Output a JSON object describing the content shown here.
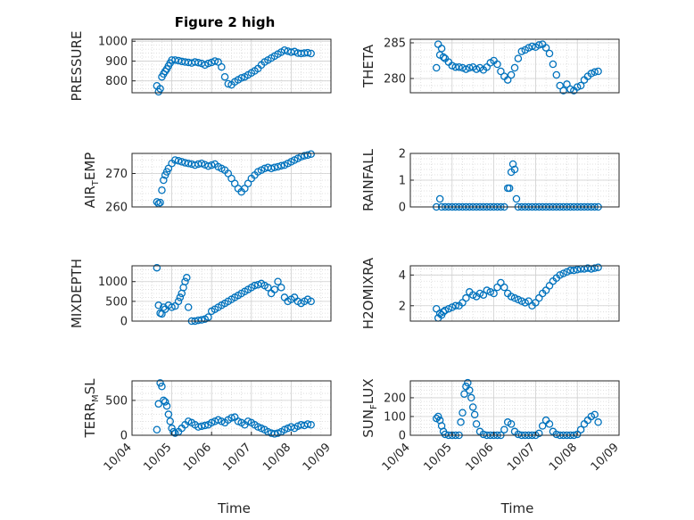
{
  "figure": {
    "title": "Figure 2 high",
    "colors": {
      "marker": "#0072BD",
      "axes": "#262626",
      "grid": "#d9d9d9",
      "background": "#ffffff"
    }
  },
  "chart_data": [
    {
      "type": "scatter",
      "ylabel": "PRESSURE",
      "ylim": [
        740,
        1010
      ],
      "yticks": [
        800,
        900,
        1000
      ],
      "xlim": [
        "10/04",
        "10/09"
      ],
      "xticks": [],
      "grid": true,
      "x": [
        "10/04 15:00",
        "10/04 16:00",
        "10/04 17:00",
        "10/04 18:00",
        "10/04 19:00",
        "10/04 20:00",
        "10/04 21:00",
        "10/04 22:00",
        "10/04 23:00",
        "10/05 00:00",
        "10/05 02:00",
        "10/05 04:00",
        "10/05 06:00",
        "10/05 08:00",
        "10/05 10:00",
        "10/05 12:00",
        "10/05 14:00",
        "10/05 16:00",
        "10/05 18:00",
        "10/05 20:00",
        "10/05 22:00",
        "10/06 00:00",
        "10/06 02:00",
        "10/06 04:00",
        "10/06 06:00",
        "10/06 08:00",
        "10/06 10:00",
        "10/06 12:00",
        "10/06 14:00",
        "10/06 16:00",
        "10/06 18:00",
        "10/06 20:00",
        "10/06 22:00",
        "10/07 00:00",
        "10/07 02:00",
        "10/07 04:00",
        "10/07 06:00",
        "10/07 08:00",
        "10/07 10:00",
        "10/07 12:00",
        "10/07 14:00",
        "10/07 16:00",
        "10/07 18:00",
        "10/07 20:00",
        "10/07 22:00",
        "10/08 00:00",
        "10/08 02:00",
        "10/08 04:00",
        "10/08 06:00",
        "10/08 08:00",
        "10/08 10:00",
        "10/08 12:00"
      ],
      "y": [
        775,
        745,
        760,
        820,
        835,
        848,
        860,
        875,
        890,
        905,
        905,
        902,
        898,
        895,
        893,
        890,
        895,
        892,
        888,
        880,
        888,
        893,
        900,
        895,
        870,
        820,
        785,
        780,
        795,
        805,
        815,
        820,
        830,
        840,
        850,
        862,
        880,
        895,
        905,
        915,
        925,
        935,
        945,
        955,
        950,
        945,
        948,
        940,
        938,
        940,
        942,
        938
      ]
    },
    {
      "type": "scatter",
      "ylabel": "THETA",
      "ylim": [
        278,
        285.5
      ],
      "yticks": [
        280,
        285
      ],
      "xlim": [
        "10/04",
        "10/09"
      ],
      "xticks": [],
      "grid": true,
      "x": [
        "10/04 15:00",
        "10/04 16:00",
        "10/04 17:00",
        "10/04 18:00",
        "10/04 19:00",
        "10/04 20:00",
        "10/04 22:00",
        "10/05 00:00",
        "10/05 02:00",
        "10/05 04:00",
        "10/05 06:00",
        "10/05 08:00",
        "10/05 10:00",
        "10/05 12:00",
        "10/05 14:00",
        "10/05 16:00",
        "10/05 18:00",
        "10/05 20:00",
        "10/05 22:00",
        "10/06 00:00",
        "10/06 02:00",
        "10/06 04:00",
        "10/06 06:00",
        "10/06 08:00",
        "10/06 10:00",
        "10/06 12:00",
        "10/06 14:00",
        "10/06 16:00",
        "10/06 18:00",
        "10/06 20:00",
        "10/06 22:00",
        "10/07 00:00",
        "10/07 02:00",
        "10/07 04:00",
        "10/07 06:00",
        "10/07 08:00",
        "10/07 10:00",
        "10/07 12:00",
        "10/07 14:00",
        "10/07 16:00",
        "10/07 18:00",
        "10/07 20:00",
        "10/07 22:00",
        "10/08 00:00",
        "10/08 02:00",
        "10/08 04:00",
        "10/08 06:00",
        "10/08 08:00",
        "10/08 10:00",
        "10/08 12:00"
      ],
      "y": [
        281.5,
        284.8,
        283.3,
        284.2,
        283.0,
        282.8,
        282.3,
        281.8,
        281.6,
        281.6,
        281.5,
        281.3,
        281.5,
        281.6,
        281.3,
        281.5,
        281.2,
        281.6,
        282.2,
        282.5,
        282.0,
        281.0,
        280.3,
        279.8,
        280.5,
        281.5,
        282.8,
        283.8,
        284.0,
        284.3,
        284.5,
        284.4,
        284.7,
        284.8,
        284.3,
        283.5,
        282.0,
        280.5,
        279.0,
        278.3,
        279.2,
        278.5,
        278.3,
        278.8,
        279.0,
        279.8,
        280.3,
        280.7,
        280.9,
        281.0
      ]
    },
    {
      "type": "scatter",
      "ylabel": "AIR_TEMP",
      "ylim": [
        260,
        276
      ],
      "yticks": [
        260,
        270
      ],
      "xlim": [
        "10/04",
        "10/09"
      ],
      "xticks": [],
      "grid": true,
      "x": [
        "10/04 15:00",
        "10/04 16:00",
        "10/04 17:00",
        "10/04 18:00",
        "10/04 19:00",
        "10/04 20:00",
        "10/04 21:00",
        "10/04 22:00",
        "10/05 00:00",
        "10/05 02:00",
        "10/05 04:00",
        "10/05 06:00",
        "10/05 08:00",
        "10/05 10:00",
        "10/05 12:00",
        "10/05 14:00",
        "10/05 16:00",
        "10/05 18:00",
        "10/05 20:00",
        "10/05 22:00",
        "10/06 00:00",
        "10/06 02:00",
        "10/06 04:00",
        "10/06 06:00",
        "10/06 08:00",
        "10/06 10:00",
        "10/06 12:00",
        "10/06 14:00",
        "10/06 16:00",
        "10/06 18:00",
        "10/06 20:00",
        "10/06 22:00",
        "10/07 00:00",
        "10/07 02:00",
        "10/07 04:00",
        "10/07 06:00",
        "10/07 08:00",
        "10/07 10:00",
        "10/07 12:00",
        "10/07 14:00",
        "10/07 16:00",
        "10/07 18:00",
        "10/07 20:00",
        "10/07 22:00",
        "10/08 00:00",
        "10/08 02:00",
        "10/08 04:00",
        "10/08 06:00",
        "10/08 08:00",
        "10/08 10:00",
        "10/08 12:00"
      ],
      "y": [
        261.5,
        261.0,
        261.3,
        265.0,
        268.0,
        269.5,
        270.5,
        271.5,
        273.0,
        274.0,
        273.8,
        273.5,
        273.2,
        273.0,
        272.8,
        272.5,
        272.8,
        273.0,
        272.6,
        272.2,
        272.5,
        272.8,
        272.0,
        271.5,
        271.0,
        270.0,
        268.5,
        267.0,
        265.5,
        264.5,
        265.5,
        267.0,
        268.5,
        269.5,
        270.5,
        271.0,
        271.5,
        271.8,
        271.5,
        271.8,
        272.0,
        272.3,
        272.5,
        273.0,
        273.5,
        274.0,
        274.5,
        275.0,
        275.3,
        275.5,
        275.8
      ]
    },
    {
      "type": "scatter",
      "ylabel": "RAINFALL",
      "ylim": [
        0,
        2
      ],
      "yticks": [
        0,
        1,
        2
      ],
      "xlim": [
        "10/04",
        "10/09"
      ],
      "xticks": [],
      "grid": true,
      "x": [
        "10/04 15:00",
        "10/04 17:00",
        "10/04 18:00",
        "10/04 20:00",
        "10/04 22:00",
        "10/05 00:00",
        "10/05 02:00",
        "10/05 04:00",
        "10/05 06:00",
        "10/05 08:00",
        "10/05 10:00",
        "10/05 12:00",
        "10/05 14:00",
        "10/05 16:00",
        "10/05 18:00",
        "10/05 20:00",
        "10/05 22:00",
        "10/06 00:00",
        "10/06 02:00",
        "10/06 04:00",
        "10/06 06:00",
        "10/06 08:00",
        "10/06 09:00",
        "10/06 10:00",
        "10/06 11:00",
        "10/06 12:00",
        "10/06 13:00",
        "10/06 14:00",
        "10/06 16:00",
        "10/06 18:00",
        "10/06 20:00",
        "10/06 22:00",
        "10/07 00:00",
        "10/07 02:00",
        "10/07 04:00",
        "10/07 06:00",
        "10/07 08:00",
        "10/07 10:00",
        "10/07 12:00",
        "10/07 14:00",
        "10/07 16:00",
        "10/07 18:00",
        "10/07 20:00",
        "10/07 22:00",
        "10/08 00:00",
        "10/08 02:00",
        "10/08 04:00",
        "10/08 06:00",
        "10/08 08:00",
        "10/08 10:00",
        "10/08 12:00"
      ],
      "y": [
        0,
        0.3,
        0,
        0,
        0,
        0,
        0,
        0,
        0,
        0,
        0,
        0,
        0,
        0,
        0,
        0,
        0,
        0,
        0,
        0,
        0,
        0.7,
        0.7,
        1.3,
        1.6,
        1.4,
        0.3,
        0,
        0,
        0,
        0,
        0,
        0,
        0,
        0,
        0,
        0,
        0,
        0,
        0,
        0,
        0,
        0,
        0,
        0,
        0,
        0,
        0,
        0,
        0,
        0
      ]
    },
    {
      "type": "scatter",
      "ylabel": "MIXDEPTH",
      "ylim": [
        0,
        1400
      ],
      "yticks": [
        0,
        500,
        1000
      ],
      "xlim": [
        "10/04",
        "10/09"
      ],
      "xticks": [],
      "grid": true,
      "x": [
        "10/04 15:00",
        "10/04 16:00",
        "10/04 17:00",
        "10/04 18:00",
        "10/04 19:00",
        "10/04 20:00",
        "10/04 22:00",
        "10/05 00:00",
        "10/05 02:00",
        "10/05 04:00",
        "10/05 05:00",
        "10/05 06:00",
        "10/05 07:00",
        "10/05 08:00",
        "10/05 09:00",
        "10/05 10:00",
        "10/05 12:00",
        "10/05 14:00",
        "10/05 16:00",
        "10/05 18:00",
        "10/05 20:00",
        "10/05 22:00",
        "10/06 00:00",
        "10/06 02:00",
        "10/06 04:00",
        "10/06 06:00",
        "10/06 08:00",
        "10/06 10:00",
        "10/06 12:00",
        "10/06 14:00",
        "10/06 16:00",
        "10/06 18:00",
        "10/06 20:00",
        "10/06 22:00",
        "10/07 00:00",
        "10/07 02:00",
        "10/07 04:00",
        "10/07 06:00",
        "10/07 08:00",
        "10/07 10:00",
        "10/07 12:00",
        "10/07 14:00",
        "10/07 16:00",
        "10/07 18:00",
        "10/07 20:00",
        "10/07 22:00",
        "10/08 00:00",
        "10/08 02:00",
        "10/08 04:00",
        "10/08 06:00",
        "10/08 08:00",
        "10/08 10:00",
        "10/08 12:00"
      ],
      "y": [
        1350,
        400,
        200,
        180,
        350,
        300,
        400,
        350,
        380,
        500,
        600,
        700,
        850,
        1000,
        1100,
        350,
        0,
        0,
        20,
        30,
        50,
        100,
        250,
        300,
        350,
        400,
        450,
        500,
        550,
        600,
        650,
        700,
        750,
        800,
        850,
        900,
        920,
        950,
        900,
        850,
        700,
        800,
        1000,
        850,
        600,
        500,
        550,
        600,
        500,
        450,
        500,
        550,
        500
      ]
    },
    {
      "type": "scatter",
      "ylabel": "H2OMIXRA",
      "ylim": [
        1,
        4.6
      ],
      "yticks": [
        2,
        4
      ],
      "xlim": [
        "10/04",
        "10/09"
      ],
      "xticks": [],
      "grid": true,
      "x": [
        "10/04 15:00",
        "10/04 16:00",
        "10/04 17:00",
        "10/04 18:00",
        "10/04 19:00",
        "10/04 20:00",
        "10/04 22:00",
        "10/05 00:00",
        "10/05 02:00",
        "10/05 04:00",
        "10/05 06:00",
        "10/05 08:00",
        "10/05 10:00",
        "10/05 12:00",
        "10/05 14:00",
        "10/05 16:00",
        "10/05 18:00",
        "10/05 20:00",
        "10/05 22:00",
        "10/06 00:00",
        "10/06 02:00",
        "10/06 04:00",
        "10/06 06:00",
        "10/06 08:00",
        "10/06 10:00",
        "10/06 12:00",
        "10/06 14:00",
        "10/06 16:00",
        "10/06 18:00",
        "10/06 20:00",
        "10/06 22:00",
        "10/07 00:00",
        "10/07 02:00",
        "10/07 04:00",
        "10/07 06:00",
        "10/07 08:00",
        "10/07 10:00",
        "10/07 12:00",
        "10/07 14:00",
        "10/07 16:00",
        "10/07 18:00",
        "10/07 20:00",
        "10/07 22:00",
        "10/08 00:00",
        "10/08 02:00",
        "10/08 04:00",
        "10/08 06:00",
        "10/08 08:00",
        "10/08 10:00",
        "10/08 12:00"
      ],
      "y": [
        1.8,
        1.2,
        1.5,
        1.4,
        1.6,
        1.7,
        1.8,
        1.9,
        2.0,
        2.0,
        2.2,
        2.5,
        2.9,
        2.7,
        2.6,
        2.8,
        2.7,
        3.0,
        2.9,
        2.8,
        3.2,
        3.5,
        3.2,
        2.8,
        2.6,
        2.5,
        2.4,
        2.3,
        2.2,
        2.3,
        2.0,
        2.2,
        2.5,
        2.8,
        3.0,
        3.3,
        3.6,
        3.8,
        4.0,
        4.1,
        4.2,
        4.3,
        4.3,
        4.35,
        4.4,
        4.4,
        4.45,
        4.4,
        4.45,
        4.5
      ]
    },
    {
      "type": "scatter",
      "ylabel": "TERR_MSL",
      "ylim": [
        0,
        780
      ],
      "yticks": [
        0,
        500
      ],
      "xlim": [
        "10/04",
        "10/09"
      ],
      "xticks": [
        "10/04",
        "10/05",
        "10/06",
        "10/07",
        "10/08",
        "10/09"
      ],
      "xlabel": "Time",
      "grid": true,
      "x": [
        "10/04 15:00",
        "10/04 16:00",
        "10/04 17:00",
        "10/04 18:00",
        "10/04 19:00",
        "10/04 20:00",
        "10/04 21:00",
        "10/04 22:00",
        "10/04 23:00",
        "10/05 00:00",
        "10/05 01:00",
        "10/05 02:00",
        "10/05 04:00",
        "10/05 06:00",
        "10/05 08:00",
        "10/05 10:00",
        "10/05 12:00",
        "10/05 14:00",
        "10/05 16:00",
        "10/05 18:00",
        "10/05 20:00",
        "10/05 22:00",
        "10/06 00:00",
        "10/06 02:00",
        "10/06 04:00",
        "10/06 06:00",
        "10/06 08:00",
        "10/06 10:00",
        "10/06 12:00",
        "10/06 14:00",
        "10/06 16:00",
        "10/06 18:00",
        "10/06 20:00",
        "10/06 22:00",
        "10/07 00:00",
        "10/07 02:00",
        "10/07 04:00",
        "10/07 06:00",
        "10/07 08:00",
        "10/07 10:00",
        "10/07 12:00",
        "10/07 14:00",
        "10/07 16:00",
        "10/07 18:00",
        "10/07 20:00",
        "10/07 22:00",
        "10/08 00:00",
        "10/08 02:00",
        "10/08 04:00",
        "10/08 06:00",
        "10/08 08:00",
        "10/08 10:00",
        "10/08 12:00"
      ],
      "y": [
        80,
        450,
        750,
        700,
        500,
        480,
        420,
        300,
        200,
        100,
        50,
        30,
        50,
        100,
        150,
        200,
        180,
        150,
        120,
        130,
        140,
        150,
        180,
        200,
        220,
        200,
        180,
        220,
        250,
        260,
        200,
        180,
        150,
        200,
        180,
        150,
        120,
        100,
        80,
        50,
        30,
        20,
        30,
        50,
        80,
        100,
        120,
        100,
        130,
        150,
        140,
        160,
        150
      ]
    },
    {
      "type": "scatter",
      "ylabel": "SUN_FLUX",
      "ylim": [
        0,
        290
      ],
      "yticks": [
        0,
        100,
        200
      ],
      "xlim": [
        "10/04",
        "10/09"
      ],
      "xticks": [
        "10/04",
        "10/05",
        "10/06",
        "10/07",
        "10/08",
        "10/09"
      ],
      "xlabel": "Time",
      "grid": true,
      "x": [
        "10/04 15:00",
        "10/04 16:00",
        "10/04 17:00",
        "10/04 18:00",
        "10/04 19:00",
        "10/04 20:00",
        "10/04 22:00",
        "10/05 00:00",
        "10/05 02:00",
        "10/05 04:00",
        "10/05 05:00",
        "10/05 06:00",
        "10/05 07:00",
        "10/05 08:00",
        "10/05 09:00",
        "10/05 10:00",
        "10/05 11:00",
        "10/05 12:00",
        "10/05 13:00",
        "10/05 14:00",
        "10/05 16:00",
        "10/05 18:00",
        "10/05 20:00",
        "10/05 22:00",
        "10/06 00:00",
        "10/06 02:00",
        "10/06 04:00",
        "10/06 06:00",
        "10/06 08:00",
        "10/06 10:00",
        "10/06 12:00",
        "10/06 14:00",
        "10/06 16:00",
        "10/06 18:00",
        "10/06 20:00",
        "10/06 22:00",
        "10/07 00:00",
        "10/07 02:00",
        "10/07 04:00",
        "10/07 06:00",
        "10/07 08:00",
        "10/07 10:00",
        "10/07 12:00",
        "10/07 14:00",
        "10/07 16:00",
        "10/07 18:00",
        "10/07 20:00",
        "10/07 22:00",
        "10/08 00:00",
        "10/08 02:00",
        "10/08 04:00",
        "10/08 06:00",
        "10/08 08:00",
        "10/08 10:00",
        "10/08 12:00"
      ],
      "y": [
        90,
        100,
        80,
        50,
        20,
        5,
        0,
        0,
        0,
        0,
        70,
        120,
        220,
        260,
        280,
        240,
        200,
        150,
        110,
        60,
        20,
        5,
        0,
        0,
        0,
        0,
        0,
        30,
        70,
        60,
        20,
        5,
        0,
        0,
        0,
        0,
        0,
        10,
        50,
        80,
        60,
        20,
        5,
        0,
        0,
        0,
        0,
        0,
        5,
        30,
        60,
        80,
        100,
        110,
        70
      ]
    }
  ]
}
